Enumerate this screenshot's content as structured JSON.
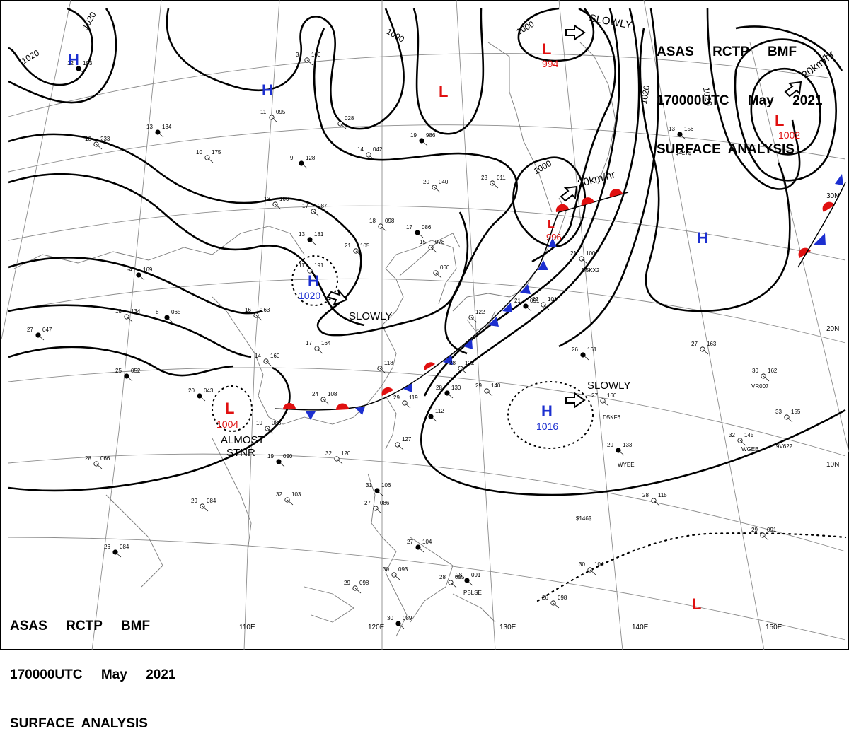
{
  "header": {
    "line1": "ASAS     RCTP     BMF",
    "line2": "170000UTC     May     2021",
    "line3": "SURFACE  ANALYSIS"
  },
  "longitude_labels": [
    "110E",
    "120E",
    "130E",
    "140E",
    "150E"
  ],
  "latitude_labels": [
    "30N",
    "20N",
    "10N"
  ],
  "isobar_labels": [
    "1020",
    "1020",
    "1000",
    "1000",
    "1020",
    "1020",
    "1000"
  ],
  "pressure_centers": [
    {
      "type": "H",
      "value": "",
      "color": "#1c2fd0"
    },
    {
      "type": "H",
      "value": "",
      "color": "#1c2fd0"
    },
    {
      "type": "H",
      "value": "1020",
      "color": "#1c2fd0"
    },
    {
      "type": "L",
      "value": "1004",
      "color": "#e01010"
    },
    {
      "type": "H",
      "value": "1016",
      "color": "#1c2fd0"
    },
    {
      "type": "L",
      "value": "",
      "color": "#e01010"
    },
    {
      "type": "L",
      "value": "994",
      "color": "#e01010"
    },
    {
      "type": "L",
      "value": "1002",
      "color": "#e01010"
    },
    {
      "type": "L",
      "value": "996",
      "color": "#e01010"
    },
    {
      "type": "H",
      "value": "",
      "color": "#1c2fd0"
    },
    {
      "type": "L",
      "value": "",
      "color": "#e01010"
    }
  ],
  "motion_labels": [
    "SLOWLY",
    "SLOWLY",
    "SLOWLY",
    "20km/hr",
    "20km/hr",
    "ALMOST",
    "STNR"
  ],
  "station_obs": [
    {
      "t": "12",
      "p": "193"
    },
    {
      "t": "3",
      "p": "100"
    },
    {
      "t": "11",
      "p": "095"
    },
    {
      "t": "13",
      "p": "134"
    },
    {
      "t": "10",
      "p": "233"
    },
    {
      "t": "10",
      "p": "175"
    },
    {
      "t": "9",
      "p": "128"
    },
    {
      "t": "",
      "p": "028"
    },
    {
      "t": "14",
      "p": "042"
    },
    {
      "t": "19",
      "p": "986"
    },
    {
      "t": "20",
      "p": "040"
    },
    {
      "t": "23",
      "p": "011"
    },
    {
      "t": "13",
      "p": "156"
    },
    {
      "t": "13",
      "p": "106"
    },
    {
      "t": "17",
      "p": "087"
    },
    {
      "t": "13",
      "p": "181"
    },
    {
      "t": "21",
      "p": "105"
    },
    {
      "t": "18",
      "p": "098"
    },
    {
      "t": "17",
      "p": "086"
    },
    {
      "t": "15",
      "p": "078"
    },
    {
      "t": "",
      "p": "060"
    },
    {
      "t": "-4",
      "p": "169"
    },
    {
      "t": "11",
      "p": "191"
    },
    {
      "t": "18",
      "p": "134"
    },
    {
      "t": "8",
      "p": "065"
    },
    {
      "t": "16",
      "p": "163"
    },
    {
      "t": "",
      "p": "122"
    },
    {
      "t": "21",
      "p": "091"
    },
    {
      "t": "22",
      "p": "101"
    },
    {
      "t": "21",
      "p": "100"
    },
    {
      "t": "27",
      "p": "047"
    },
    {
      "t": "17",
      "p": "164"
    },
    {
      "t": "14",
      "p": "160"
    },
    {
      "t": "25",
      "p": "052"
    },
    {
      "t": "",
      "p": "118"
    },
    {
      "t": "28",
      "p": "122"
    },
    {
      "t": "26",
      "p": "161"
    },
    {
      "t": "27",
      "p": "163"
    },
    {
      "t": "30",
      "p": "162"
    },
    {
      "t": "20",
      "p": "043"
    },
    {
      "t": "24",
      "p": "108"
    },
    {
      "t": "29",
      "p": "119"
    },
    {
      "t": "28",
      "p": "130"
    },
    {
      "t": "29",
      "p": "140"
    },
    {
      "t": "27",
      "p": "160"
    },
    {
      "t": "",
      "p": "112"
    },
    {
      "t": "19",
      "p": "083"
    },
    {
      "t": "28",
      "p": "066"
    },
    {
      "t": "19",
      "p": "090"
    },
    {
      "t": "",
      "p": "127"
    },
    {
      "t": "32",
      "p": "120"
    },
    {
      "t": "29",
      "p": "133"
    },
    {
      "t": "32",
      "p": "145"
    },
    {
      "t": "33",
      "p": "155"
    },
    {
      "t": "31",
      "p": "106"
    },
    {
      "t": "32",
      "p": "103"
    },
    {
      "t": "29",
      "p": "084"
    },
    {
      "t": "26",
      "p": "084"
    },
    {
      "t": "28",
      "p": "115"
    },
    {
      "t": "27",
      "p": "086"
    },
    {
      "t": "27",
      "p": "104"
    },
    {
      "t": "30",
      "p": "093"
    },
    {
      "t": "28",
      "p": "095"
    },
    {
      "t": "28",
      "p": "091"
    },
    {
      "t": "29",
      "p": "098"
    },
    {
      "t": "26",
      "p": "098"
    },
    {
      "t": "30",
      "p": "089"
    },
    {
      "t": "29",
      "p": "091"
    },
    {
      "t": "30",
      "p": "104"
    }
  ],
  "ship_ids": [
    "$427$",
    "D5KF6",
    "VR007",
    "WGEB",
    "9V622",
    "WYEE",
    "$146$",
    "PBLSE",
    "D5KX2"
  ]
}
